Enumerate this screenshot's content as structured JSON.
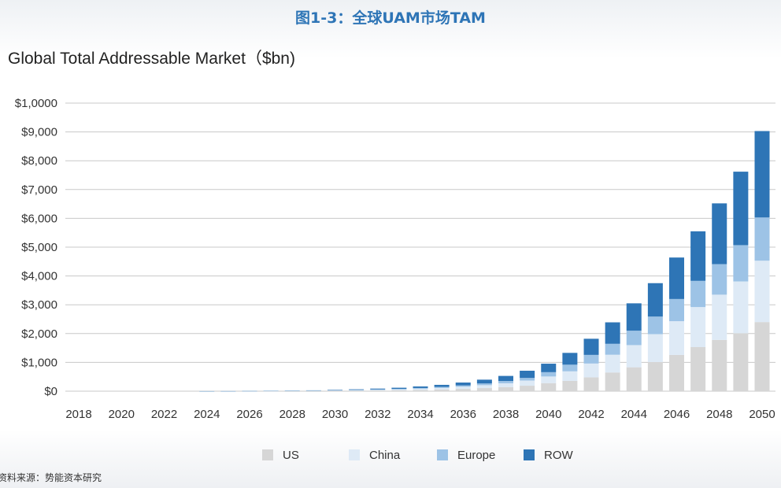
{
  "header": {
    "figure_title": "图1-3：全球UAM市场TAM",
    "source": "资料来源：势能资本研究"
  },
  "chart_data": {
    "type": "bar",
    "stacked": true,
    "title": "Global Total Addressable Market（$bn)",
    "xlabel": "",
    "ylabel": "",
    "ylim": [
      0,
      10000
    ],
    "y_ticks": [
      0,
      1000,
      2000,
      3000,
      4000,
      5000,
      6000,
      7000,
      8000,
      9000,
      10000
    ],
    "y_tick_labels": [
      "$0",
      "$1,000",
      "$2,000",
      "$3,000",
      "$4,000",
      "$5,000",
      "$6,000",
      "$7,000",
      "$8,000",
      "$9,000",
      "$1,0000"
    ],
    "x_tick_labels": [
      "2018",
      "2020",
      "2022",
      "2024",
      "2026",
      "2028",
      "2030",
      "2032",
      "2034",
      "2036",
      "2038",
      "2040",
      "2042",
      "2044",
      "2046",
      "2048",
      "2050"
    ],
    "grid": true,
    "legend_placement": "bottom",
    "categories": [
      "2018",
      "2019",
      "2020",
      "2021",
      "2022",
      "2023",
      "2024",
      "2025",
      "2026",
      "2027",
      "2028",
      "2029",
      "2030",
      "2031",
      "2032",
      "2033",
      "2034",
      "2035",
      "2036",
      "2037",
      "2038",
      "2039",
      "2040",
      "2041",
      "2042",
      "2043",
      "2044",
      "2045",
      "2046",
      "2047",
      "2048",
      "2049",
      "2050"
    ],
    "series": [
      {
        "name": "US",
        "color": "#d6d6d6",
        "values": [
          0,
          0,
          0,
          0,
          0,
          0,
          0.3,
          0.5,
          1.4,
          2.7,
          5,
          8,
          13,
          18,
          24,
          32,
          45,
          60,
          80,
          108,
          143,
          190,
          280,
          355,
          480,
          650,
          830,
          1010,
          1260,
          1530,
          1780,
          2010,
          2400
        ]
      },
      {
        "name": "China",
        "color": "#deeaf6",
        "values": [
          0,
          0,
          0,
          0,
          0,
          0,
          0.2,
          0.5,
          1.2,
          2.5,
          5,
          8,
          12,
          16,
          23,
          30,
          41,
          55,
          75,
          100,
          132,
          180,
          230,
          335,
          480,
          615,
          770,
          970,
          1170,
          1390,
          1570,
          1800,
          2130
        ]
      },
      {
        "name": "Europe",
        "color": "#9dc3e6",
        "values": [
          0,
          0,
          0,
          0,
          0,
          0,
          0.2,
          0.3,
          0.8,
          1.5,
          3,
          4,
          7,
          10,
          13,
          18,
          25,
          33,
          45,
          60,
          80,
          90,
          150,
          230,
          300,
          380,
          500,
          610,
          770,
          910,
          1060,
          1260,
          1500
        ]
      },
      {
        "name": "ROW",
        "color": "#2e75b6",
        "values": [
          0,
          0,
          0,
          0,
          0,
          0,
          0.3,
          0.7,
          1.6,
          3.3,
          7,
          10,
          16,
          21,
          30,
          40,
          54,
          72,
          100,
          132,
          175,
          250,
          295,
          410,
          560,
          745,
          950,
          1160,
          1440,
          1720,
          2110,
          2550,
          3000
        ]
      }
    ]
  }
}
